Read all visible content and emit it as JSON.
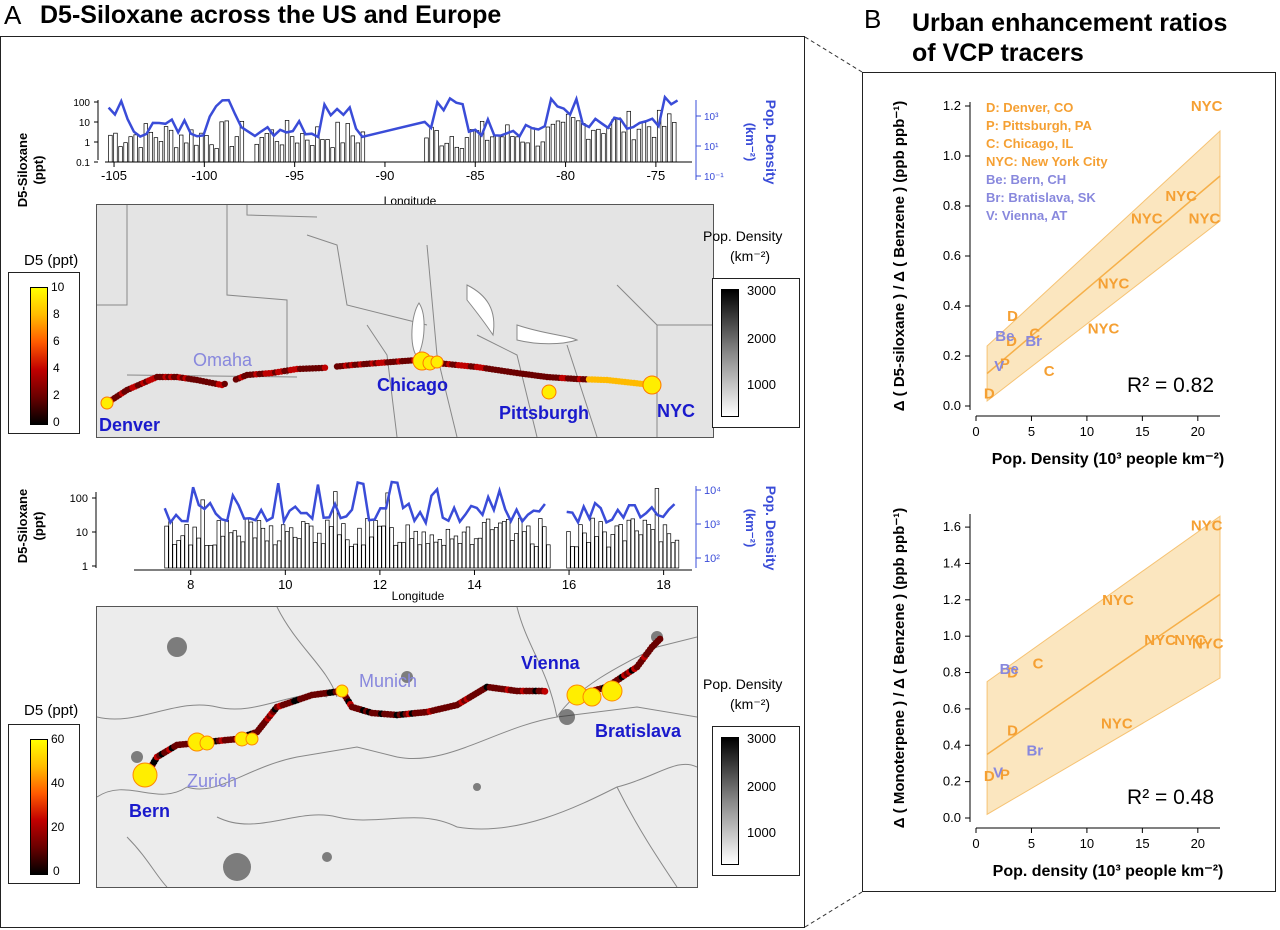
{
  "panel_a": {
    "letter": "A",
    "title": "D5-Siloxane across the US and Europe",
    "us": {
      "ylabel_left": [
        "D5-Siloxane",
        "(ppt)"
      ],
      "ylabel_right": [
        "Pop. Density",
        "(km⁻²)"
      ],
      "xlabel": "Longitude",
      "y_ticks": [
        "100",
        "10",
        "1",
        "0.1"
      ],
      "y_right_ticks": [
        "10³",
        "10¹",
        "10⁻¹"
      ],
      "x_ticks": [
        "-105",
        "-100",
        "-95",
        "-90",
        "-85",
        "-80",
        "-75"
      ],
      "cities": [
        "Denver",
        "Omaha",
        "Chicago",
        "Pittsburgh",
        "NYC"
      ],
      "colorbar_d5": {
        "title": "D5 (ppt)",
        "ticks": [
          "10",
          "8",
          "6",
          "4",
          "2",
          "0"
        ]
      },
      "colorbar_pop": {
        "title": [
          "Pop. Density",
          "(km⁻²)"
        ],
        "ticks": [
          "3000",
          "2000",
          "1000"
        ]
      }
    },
    "eu": {
      "ylabel_left": [
        "D5-Siloxane",
        "(ppt)"
      ],
      "ylabel_right": [
        "Pop. Density",
        "(km⁻²)"
      ],
      "xlabel": "Longitude",
      "y_ticks": [
        "100",
        "10",
        "1"
      ],
      "y_right_ticks": [
        "10⁴",
        "10³",
        "10²"
      ],
      "x_ticks": [
        "8",
        "10",
        "12",
        "14",
        "16",
        "18"
      ],
      "cities": [
        "Vienna",
        "Munich",
        "Bratislava",
        "Zurich",
        "Bern"
      ],
      "colorbar_d5": {
        "title": "D5 (ppt)",
        "ticks": [
          "60",
          "40",
          "20",
          "0"
        ]
      },
      "colorbar_pop": {
        "title": [
          "Pop. Density",
          "(km⁻²)"
        ],
        "ticks": [
          "3000",
          "2000",
          "1000"
        ]
      }
    }
  },
  "panel_b": {
    "letter": "B",
    "title": [
      "Urban enhancement ratios",
      "of VCP tracers"
    ]
  },
  "colors": {
    "orange": "#f5a033",
    "lavender": "#8888dd",
    "blue": "#1a1acc",
    "band": "#fbe6bf",
    "line": "#3a4cd8"
  },
  "chart_data": [
    {
      "type": "scatter",
      "title": "",
      "xlabel": "Pop. Density (10³ people km⁻²)",
      "ylabel": "Δ ( D5-siloxane ) / Δ ( Benzene ) (ppb ppb⁻¹)",
      "xlim": [
        0,
        22
      ],
      "ylim": [
        0,
        1.2
      ],
      "x_ticks": [
        0,
        5,
        10,
        15,
        20
      ],
      "y_ticks": [
        0.0,
        0.2,
        0.4,
        0.6,
        0.8,
        1.0,
        1.2
      ],
      "r2_label": "R² = 0.82",
      "legend": [
        "D: Denver, CO",
        "P: Pittsburgh, PA",
        "C: Chicago, IL",
        "NYC: New York City",
        "Be: Bern, CH",
        "Br: Bratislava, SK",
        "V: Vienna, AT"
      ],
      "points": [
        {
          "label": "D",
          "x": 1.2,
          "y": 0.05,
          "group": "us"
        },
        {
          "label": "D",
          "x": 3.3,
          "y": 0.36,
          "group": "us"
        },
        {
          "label": "D",
          "x": 3.2,
          "y": 0.26,
          "group": "us"
        },
        {
          "label": "P",
          "x": 2.6,
          "y": 0.17,
          "group": "us"
        },
        {
          "label": "C",
          "x": 5.3,
          "y": 0.29,
          "group": "us"
        },
        {
          "label": "C",
          "x": 6.6,
          "y": 0.14,
          "group": "us"
        },
        {
          "label": "NYC",
          "x": 11.5,
          "y": 0.31,
          "group": "us"
        },
        {
          "label": "NYC",
          "x": 12.4,
          "y": 0.49,
          "group": "us"
        },
        {
          "label": "NYC",
          "x": 15.4,
          "y": 0.75,
          "group": "us"
        },
        {
          "label": "NYC",
          "x": 18.5,
          "y": 0.84,
          "group": "us"
        },
        {
          "label": "NYC",
          "x": 20.6,
          "y": 0.75,
          "group": "us"
        },
        {
          "label": "NYC",
          "x": 20.8,
          "y": 1.2,
          "group": "us"
        },
        {
          "label": "Be",
          "x": 2.6,
          "y": 0.28,
          "group": "eu"
        },
        {
          "label": "Br",
          "x": 5.2,
          "y": 0.26,
          "group": "eu"
        },
        {
          "label": "V",
          "x": 2.1,
          "y": 0.16,
          "group": "eu"
        }
      ],
      "fit": {
        "x": [
          1,
          22
        ],
        "y": [
          0.13,
          0.92
        ]
      },
      "band_upper": {
        "x": [
          1,
          22
        ],
        "y": [
          0.24,
          1.1
        ]
      },
      "band_lower": {
        "x": [
          1,
          22
        ],
        "y": [
          0.02,
          0.74
        ]
      }
    },
    {
      "type": "scatter",
      "title": "",
      "xlabel": "Pop. density (10³ people km⁻²)",
      "ylabel": "Δ ( Monoterpene ) / Δ ( Benzene ) (ppb ppb⁻¹)",
      "xlim": [
        0,
        22
      ],
      "ylim": [
        0,
        1.65
      ],
      "x_ticks": [
        0,
        5,
        10,
        15,
        20
      ],
      "y_ticks": [
        0.0,
        0.2,
        0.4,
        0.6,
        0.8,
        1.0,
        1.2,
        1.4,
        1.6
      ],
      "r2_label": "R² = 0.48",
      "points": [
        {
          "label": "D",
          "x": 1.2,
          "y": 0.23,
          "group": "us"
        },
        {
          "label": "D",
          "x": 3.3,
          "y": 0.48,
          "group": "us"
        },
        {
          "label": "D",
          "x": 3.3,
          "y": 0.8,
          "group": "us"
        },
        {
          "label": "P",
          "x": 2.6,
          "y": 0.24,
          "group": "us"
        },
        {
          "label": "C",
          "x": 5.6,
          "y": 0.85,
          "group": "us"
        },
        {
          "label": "NYC",
          "x": 12.8,
          "y": 1.2,
          "group": "us"
        },
        {
          "label": "NYC",
          "x": 12.7,
          "y": 0.52,
          "group": "us"
        },
        {
          "label": "NYC",
          "x": 16.6,
          "y": 0.98,
          "group": "us"
        },
        {
          "label": "NYC",
          "x": 19.3,
          "y": 0.98,
          "group": "us"
        },
        {
          "label": "NYC",
          "x": 20.9,
          "y": 0.96,
          "group": "us"
        },
        {
          "label": "NYC",
          "x": 20.8,
          "y": 1.61,
          "group": "us"
        },
        {
          "label": "Be",
          "x": 3.0,
          "y": 0.82,
          "group": "eu"
        },
        {
          "label": "Br",
          "x": 5.3,
          "y": 0.37,
          "group": "eu"
        },
        {
          "label": "V",
          "x": 2.0,
          "y": 0.25,
          "group": "eu"
        }
      ],
      "fit": {
        "x": [
          1,
          22
        ],
        "y": [
          0.35,
          1.23
        ]
      },
      "band_upper": {
        "x": [
          1,
          22
        ],
        "y": [
          0.75,
          1.66
        ]
      },
      "band_lower": {
        "x": [
          1,
          22
        ],
        "y": [
          0.02,
          0.77
        ]
      }
    }
  ]
}
